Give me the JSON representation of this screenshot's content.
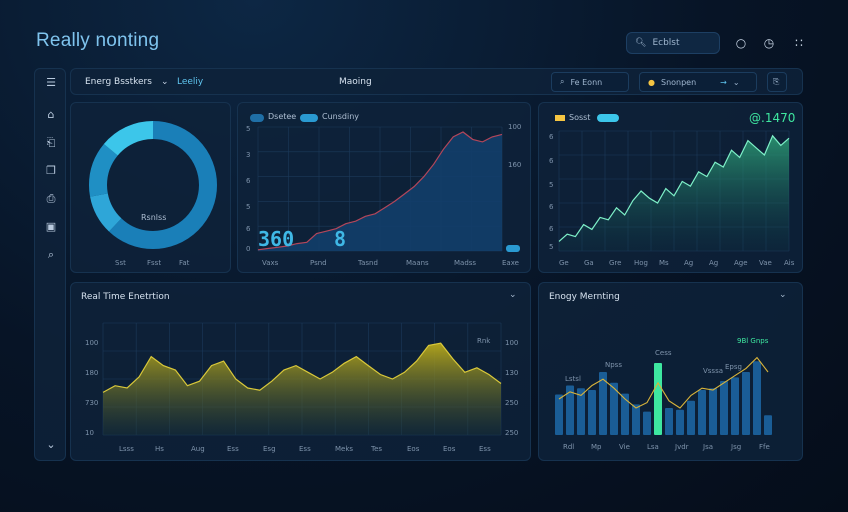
{
  "app": {
    "title": "Really nonting",
    "search_label": "Ecblst",
    "top_icons": [
      "circle-icon",
      "clock-icon",
      "grid-icon"
    ]
  },
  "topbar": {
    "section": "Energ Bsstkers",
    "selector": "Leeliy",
    "center_label": "Maoing",
    "search_label": "Fe Eonn",
    "filter_label": "Snonpen"
  },
  "sidebar": {
    "icons": [
      "menu-icon",
      "home-icon",
      "document-icon",
      "bookmark-icon",
      "printer-icon",
      "gallery-icon",
      "search-icon",
      "chevron-down-icon"
    ]
  },
  "donut": {
    "center_label": "Rsnlss",
    "bottom_labels": [
      "Sst",
      "Fsst",
      "Fat"
    ],
    "segments": [
      {
        "share": 0.62,
        "color": "#1a7fb8"
      },
      {
        "share": 0.1,
        "color": "#2ea6d8"
      },
      {
        "share": 0.14,
        "color": "#1f8fc4"
      },
      {
        "share": 0.14,
        "color": "#3cc6ea"
      }
    ]
  },
  "area_card": {
    "legend": [
      "Dsetee",
      "Cunsdiny"
    ],
    "big_value": "360",
    "big_value_2": "8",
    "right_axis": [
      "100",
      "160"
    ],
    "left_axis": [
      "5",
      "3",
      "6",
      "5",
      "6",
      "0"
    ],
    "x_labels": [
      "Vaxs",
      "Psnd",
      "Tasnd",
      "Maans",
      "Madss",
      "Eaxe"
    ],
    "series": [
      1,
      2,
      3,
      4,
      6,
      7,
      14,
      16,
      18,
      22,
      24,
      28,
      30,
      35,
      40,
      46,
      52,
      60,
      70,
      82,
      92,
      96,
      90,
      88,
      92,
      94
    ]
  },
  "green_card": {
    "legend_label": "Sosst",
    "value": "@.1470",
    "left_axis": [
      "6",
      "6",
      "5",
      "6",
      "6",
      "5"
    ],
    "x_labels": [
      "Ge",
      "Ga",
      "Gre",
      "Hog",
      "Ms",
      "Ag",
      "Ag",
      "Age",
      "Vae",
      "Ais"
    ],
    "series": [
      8,
      14,
      12,
      22,
      18,
      28,
      26,
      36,
      30,
      42,
      50,
      44,
      40,
      52,
      46,
      58,
      54,
      66,
      62,
      74,
      70,
      84,
      78,
      92,
      86,
      80,
      96,
      88,
      94
    ]
  },
  "realtime": {
    "title": "Real Time Enetrtion",
    "left_axis": [
      "100",
      "180",
      "730",
      "10"
    ],
    "right_axis": [
      "100",
      "130",
      "250",
      "250"
    ],
    "right_top": "Rnk",
    "x_labels": [
      "Lsss",
      "Hs",
      "Aug",
      "Ess",
      "Esg",
      "Ess",
      "Meks",
      "Tes",
      "Eos",
      "Eos",
      "Ess"
    ],
    "series": [
      38,
      44,
      42,
      52,
      70,
      62,
      58,
      44,
      48,
      62,
      66,
      50,
      42,
      40,
      48,
      58,
      62,
      56,
      50,
      56,
      64,
      70,
      62,
      54,
      50,
      56,
      66,
      80,
      82,
      68,
      56,
      60,
      54,
      46
    ]
  },
  "energy": {
    "title": "Enogy Mernting",
    "annotations": [
      "Lstsl",
      "Npss",
      "Cess",
      "9Bl Gnps",
      "Vsssa",
      "Epsg"
    ],
    "x_labels": [
      "Rdl",
      "Mp",
      "Vie",
      "Lsa",
      "Jvdr",
      "Jsa",
      "Jsg",
      "Ffe"
    ],
    "bars": [
      45,
      55,
      52,
      50,
      70,
      58,
      46,
      34,
      26,
      80,
      30,
      28,
      38,
      50,
      52,
      60,
      64,
      70,
      82,
      22
    ],
    "highlight_index": 9,
    "highlight_color": "#3ee7a0",
    "bar_color": "#1a5d96",
    "line": [
      40,
      48,
      44,
      55,
      62,
      52,
      40,
      30,
      36,
      58,
      38,
      30,
      44,
      52,
      50,
      58,
      66,
      74,
      86,
      70
    ]
  }
}
